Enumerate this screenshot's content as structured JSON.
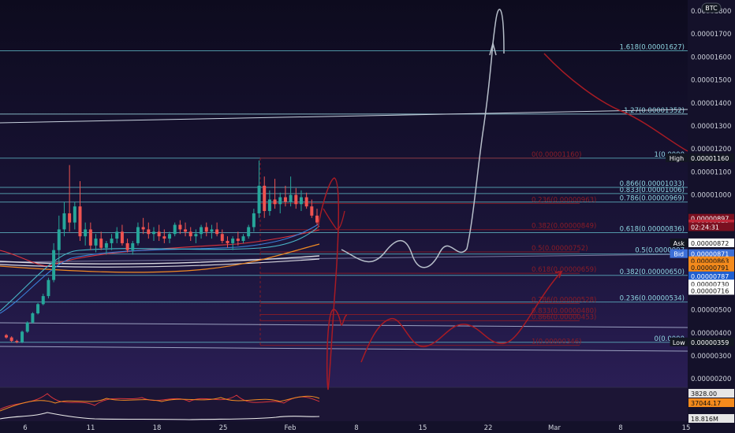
{
  "chart_data": {
    "type": "candlestick",
    "symbol_badge": "BTC",
    "price_axis": {
      "ticks": [
        "0.00001800",
        "0.00001700",
        "0.00001600",
        "0.00001500",
        "0.00001400",
        "0.00001300",
        "0.00001200",
        "0.00001100",
        "0.00001000",
        "0.00000500",
        "0.00000400",
        "0.00000300",
        "0.00000200"
      ],
      "ylim": [
        1.5e-06,
        1.82e-05
      ]
    },
    "time_axis": {
      "ticks": [
        "6",
        "11",
        "18",
        "25",
        "Feb",
        "8",
        "15",
        "22",
        "Mar",
        "8",
        "15"
      ]
    },
    "fib_right": [
      {
        "label": "1.618(0.00001627)",
        "value": 1.627e-05,
        "color": "#5fb7c4"
      },
      {
        "label": "1.27(0.00001352)",
        "value": 1.352e-05,
        "color": "#9fdde6"
      },
      {
        "label": "1(0.0000",
        "value": 1.16e-05,
        "color": "#5fb7c4"
      },
      {
        "label": "0.866(0.00001033)",
        "value": 1.033e-05,
        "color": "#5fb7c4"
      },
      {
        "label": "0.833(0.00001006)",
        "value": 1.006e-05,
        "color": "#5fb7c4"
      },
      {
        "label": "0.786(0.00000969)",
        "value": 9.69e-06,
        "color": "#5fb7c4"
      },
      {
        "label": "0.618(0.00000836)",
        "value": 8.36e-06,
        "color": "#5fb7c4"
      },
      {
        "label": "0.5(0.0000007",
        "value": 7.43e-06,
        "color": "#5fb7c4"
      },
      {
        "label": "0.382(0.00000650)",
        "value": 6.5e-06,
        "color": "#5fb7c4"
      },
      {
        "label": "0.236(0.00000534)",
        "value": 5.34e-06,
        "color": "#5fb7c4"
      },
      {
        "label": "0(0.0000",
        "value": 3.59e-06,
        "color": "#5fb7c4"
      }
    ],
    "fib_red": [
      {
        "label": "0(0.00001160)",
        "value": 1.16e-05
      },
      {
        "label": "0.236(0.00000963)",
        "value": 9.63e-06
      },
      {
        "label": "0.382(0.00000849)",
        "value": 8.49e-06
      },
      {
        "label": "0.5(0.00000752)",
        "value": 7.52e-06
      },
      {
        "label": "0.618(0.00000659)",
        "value": 6.59e-06
      },
      {
        "label": "0.786(0.00000528)",
        "value": 5.28e-06
      },
      {
        "label": "0.833(0.00000480)",
        "value": 4.8e-06
      },
      {
        "label": "0.866(0.00000453)",
        "value": 4.53e-06
      },
      {
        "label": "1(0.00000346)",
        "value": 3.46e-06
      }
    ],
    "price_tags": [
      {
        "label": "High",
        "value": "0.00001160",
        "bg": "#131722",
        "fg": "#ffffff",
        "y_val": 1.16e-05
      },
      {
        "label": "",
        "value": "0.00000897",
        "bg": "#7a1020",
        "fg": "#ffffff",
        "y_val": 8.97e-06
      },
      {
        "label": "",
        "value": "0.00000872",
        "bg": "#c0283a",
        "fg": "#ffffff",
        "y_val": 8.72e-06
      },
      {
        "label": "",
        "value": "02:24:31",
        "bg": "#7a1020",
        "fg": "#ffffff",
        "y_val": 8.6e-06
      },
      {
        "label": "Ask",
        "value": "0.00000872",
        "bg": "#ffffff",
        "fg": "#111111",
        "y_val": 7.9e-06
      },
      {
        "label": "Bid",
        "value": "0.00000871",
        "bg": "#3c6fd8",
        "fg": "#ffffff",
        "y_val": 7.43e-06
      },
      {
        "label": "",
        "value": "0.00000863",
        "bg": "#f48a1c",
        "fg": "#111111",
        "y_val": 7.12e-06
      },
      {
        "label": "",
        "value": "0.00000791",
        "bg": "#f48a1c",
        "fg": "#111111",
        "y_val": 6.84e-06
      },
      {
        "label": "",
        "value": "0.00000787",
        "bg": "#1f5fd0",
        "fg": "#ffffff",
        "y_val": 6.46e-06
      },
      {
        "label": "",
        "value": "0.00000730",
        "bg": "#ffffff",
        "fg": "#111111",
        "y_val": 6.11e-06
      },
      {
        "label": "",
        "value": "0.00000716",
        "bg": "#ffffff",
        "fg": "#111111",
        "y_val": 5.83e-06
      },
      {
        "label": "Low",
        "value": "0.00000359",
        "bg": "#131722",
        "fg": "#ffffff",
        "y_val": 3.59e-06
      }
    ],
    "indicator_tags": [
      {
        "value": "3828.00",
        "bg": "#e6e6e6",
        "fg": "#111111"
      },
      {
        "value": "37044.17",
        "bg": "#f48a1c",
        "fg": "#111111"
      },
      {
        "value": "18.816M",
        "bg": "#e6e6e6",
        "fg": "#111111"
      }
    ],
    "candles": [
      [
        3.9,
        3.95,
        3.75,
        3.8
      ],
      [
        3.8,
        3.85,
        3.6,
        3.65
      ],
      [
        3.65,
        3.7,
        3.55,
        3.6
      ],
      [
        3.6,
        4.1,
        3.55,
        4.05
      ],
      [
        4.05,
        4.5,
        4.0,
        4.45
      ],
      [
        4.45,
        4.9,
        4.4,
        4.85
      ],
      [
        4.85,
        5.3,
        4.8,
        5.25
      ],
      [
        5.25,
        5.7,
        5.2,
        5.6
      ],
      [
        5.6,
        6.4,
        5.5,
        6.3
      ],
      [
        6.3,
        7.9,
        6.2,
        7.6
      ],
      [
        7.6,
        9.1,
        7.0,
        8.5
      ],
      [
        8.5,
        9.7,
        8.2,
        9.2
      ],
      [
        9.2,
        11.3,
        8.4,
        8.8
      ],
      [
        8.8,
        9.7,
        8.5,
        9.5
      ],
      [
        9.5,
        10.6,
        8.0,
        8.2
      ],
      [
        8.2,
        8.8,
        7.8,
        8.5
      ],
      [
        8.5,
        8.8,
        7.6,
        7.8
      ],
      [
        7.8,
        8.3,
        7.5,
        8.1
      ],
      [
        8.1,
        8.4,
        7.6,
        7.7
      ],
      [
        7.7,
        8.0,
        7.4,
        7.9
      ],
      [
        7.9,
        8.3,
        7.6,
        8.1
      ],
      [
        8.1,
        8.6,
        7.9,
        8.4
      ],
      [
        8.4,
        8.7,
        7.8,
        7.9
      ],
      [
        7.9,
        8.1,
        7.5,
        7.6
      ],
      [
        7.6,
        8.0,
        7.4,
        7.9
      ],
      [
        7.9,
        8.8,
        7.8,
        8.6
      ],
      [
        8.6,
        9.0,
        8.3,
        8.5
      ],
      [
        8.5,
        8.8,
        8.1,
        8.3
      ],
      [
        8.3,
        8.6,
        8.0,
        8.4
      ],
      [
        8.4,
        8.7,
        8.0,
        8.2
      ],
      [
        8.2,
        8.5,
        7.9,
        8.1
      ],
      [
        8.1,
        8.4,
        7.9,
        8.3
      ],
      [
        8.3,
        8.8,
        8.2,
        8.7
      ],
      [
        8.7,
        8.9,
        8.3,
        8.5
      ],
      [
        8.5,
        8.8,
        8.2,
        8.4
      ],
      [
        8.4,
        8.6,
        8.0,
        8.2
      ],
      [
        8.2,
        8.5,
        7.9,
        8.3
      ],
      [
        8.3,
        8.7,
        8.1,
        8.6
      ],
      [
        8.6,
        8.8,
        8.2,
        8.4
      ],
      [
        8.4,
        8.7,
        8.1,
        8.5
      ],
      [
        8.5,
        8.8,
        8.2,
        8.3
      ],
      [
        8.3,
        8.5,
        7.9,
        8.0
      ],
      [
        8.0,
        8.2,
        7.7,
        7.9
      ],
      [
        7.9,
        8.2,
        7.6,
        8.1
      ],
      [
        8.1,
        8.4,
        7.8,
        8.0
      ],
      [
        8.0,
        8.3,
        7.9,
        8.2
      ],
      [
        8.2,
        8.7,
        8.1,
        8.6
      ],
      [
        8.6,
        9.4,
        8.4,
        9.2
      ],
      [
        9.2,
        11.5,
        9.0,
        10.4
      ],
      [
        10.4,
        10.8,
        9.0,
        9.3
      ],
      [
        9.3,
        10.2,
        9.1,
        9.8
      ],
      [
        9.8,
        10.7,
        9.4,
        9.6
      ],
      [
        9.6,
        10.1,
        9.2,
        9.9
      ],
      [
        9.9,
        10.4,
        9.5,
        9.7
      ],
      [
        9.7,
        10.8,
        9.5,
        10.0
      ],
      [
        10.0,
        10.3,
        9.4,
        9.6
      ],
      [
        9.6,
        10.2,
        9.3,
        9.9
      ],
      [
        9.9,
        10.1,
        9.4,
        9.5
      ],
      [
        9.5,
        9.8,
        9.0,
        9.1
      ],
      [
        9.1,
        9.4,
        8.7,
        8.8
      ]
    ]
  }
}
